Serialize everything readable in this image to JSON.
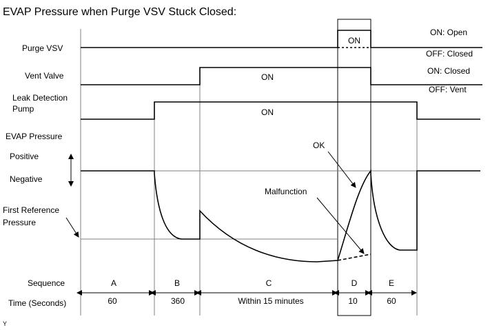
{
  "title": "EVAP Pressure when Purge VSV Stuck Closed:",
  "left_labels": {
    "purge_vsv": "Purge VSV",
    "vent_valve": "Vent Valve",
    "leak_detection_pump_line1": "Leak Detection",
    "leak_detection_pump_line2": "Pump",
    "evap_pressure": "EVAP Pressure",
    "positive": "Positive",
    "negative": "Negative",
    "first_reference_line1": "First Reference",
    "first_reference_line2": "Pressure",
    "sequence": "Sequence",
    "time": "Time (Seconds)"
  },
  "right_labels": {
    "purge_on": "ON: Open",
    "purge_off": "OFF: Closed",
    "vent_on": "ON: Closed",
    "vent_off": "OFF: Vent"
  },
  "signal_labels": {
    "purge_on": "ON",
    "vent_on": "ON",
    "pump_on": "ON"
  },
  "annotations": {
    "ok": "OK",
    "malfunction": "Malfunction"
  },
  "sequence": [
    {
      "step": "A",
      "time": "60"
    },
    {
      "step": "B",
      "time": "360"
    },
    {
      "step": "C",
      "time": "Within 15 minutes"
    },
    {
      "step": "D",
      "time": "10"
    },
    {
      "step": "E",
      "time": "60"
    }
  ],
  "footnote": "Y"
}
